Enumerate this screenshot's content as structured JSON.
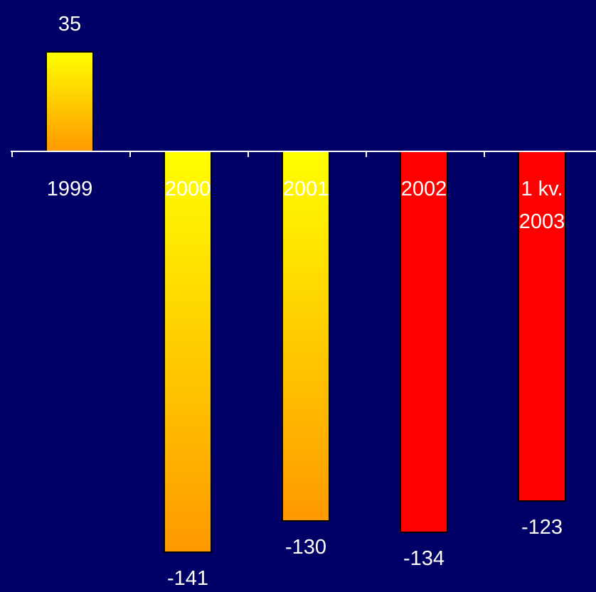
{
  "chart_data": {
    "type": "bar",
    "title": "",
    "xlabel": "",
    "ylabel": "",
    "categories": [
      [
        "1999"
      ],
      [
        "2000"
      ],
      [
        "2001"
      ],
      [
        "2002"
      ],
      [
        "1 kv.",
        "2003"
      ]
    ],
    "values": [
      35,
      -141,
      -130,
      -134,
      -123
    ],
    "value_labels": [
      "35",
      "-141",
      "-130",
      "-134",
      "-123"
    ],
    "bar_fills": [
      "gradient",
      "gradient",
      "gradient",
      "solid-red",
      "solid-red"
    ],
    "ylim": [
      -145,
      50
    ],
    "grid": false,
    "legend": "none"
  },
  "colors": {
    "background": "#000066",
    "gradient_top": "#ffff00",
    "gradient_bottom": "#ff9900",
    "solid_red": "#ff0000",
    "bar_outline": "#000000",
    "axis": "#ffffff",
    "text": "#ffffff"
  }
}
